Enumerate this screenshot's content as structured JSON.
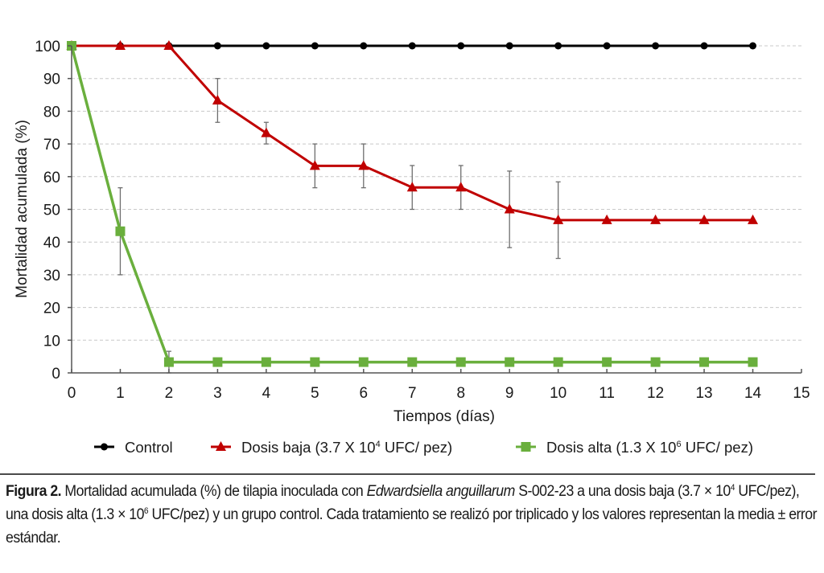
{
  "chart_data": {
    "type": "line",
    "title": "",
    "xlabel": "Tiempos (días)",
    "ylabel": "Mortalidad acumulada (%)",
    "xlim": [
      0,
      15
    ],
    "ylim": [
      0,
      100
    ],
    "xticks": [
      0,
      1,
      2,
      3,
      4,
      5,
      6,
      7,
      8,
      9,
      10,
      11,
      12,
      13,
      14,
      15
    ],
    "yticks": [
      0,
      10,
      20,
      30,
      40,
      50,
      60,
      70,
      80,
      90,
      100
    ],
    "grid": "horizontal-dashed",
    "legend_position": "bottom",
    "x": [
      0,
      1,
      2,
      3,
      4,
      5,
      6,
      7,
      8,
      9,
      10,
      11,
      12,
      13,
      14
    ],
    "series": [
      {
        "name": "Control",
        "legend_main": "Control",
        "legend_sup": "",
        "legend_tail": "",
        "color": "#000000",
        "marker": "circle",
        "values": [
          100,
          100,
          100,
          100,
          100,
          100,
          100,
          100,
          100,
          100,
          100,
          100,
          100,
          100,
          100
        ],
        "errors": [
          null,
          null,
          null,
          null,
          null,
          null,
          null,
          null,
          null,
          null,
          null,
          null,
          null,
          null,
          null
        ]
      },
      {
        "name": "Dosis baja (3.7 X 10^4 UFC/ pez)",
        "legend_main": "Dosis baja (3.7 X 10",
        "legend_sup": "4",
        "legend_tail": " UFC/ pez)",
        "color": "#c00000",
        "marker": "triangle",
        "values": [
          100,
          100,
          100,
          83.3,
          73.3,
          63.3,
          63.3,
          56.7,
          56.7,
          50,
          46.7,
          46.7,
          46.7,
          46.7,
          46.7
        ],
        "errors": [
          null,
          null,
          null,
          6.7,
          3.3,
          6.7,
          6.7,
          6.7,
          6.7,
          11.7,
          11.7,
          null,
          null,
          null,
          null
        ]
      },
      {
        "name": "Dosis alta (1.3 X 10^6 UFC/ pez)",
        "legend_main": "Dosis alta (1.3 X 10",
        "legend_sup": "6",
        "legend_tail": " UFC/ pez)",
        "color": "#6aaf3d",
        "marker": "square",
        "values": [
          100,
          43.3,
          3.3,
          3.3,
          3.3,
          3.3,
          3.3,
          3.3,
          3.3,
          3.3,
          3.3,
          3.3,
          3.3,
          3.3,
          3.3
        ],
        "errors": [
          null,
          13.3,
          3.3,
          null,
          null,
          null,
          null,
          null,
          null,
          null,
          null,
          null,
          null,
          null,
          null
        ]
      }
    ]
  },
  "caption": {
    "label": "Figura 2.",
    "part1": " Mortalidad acumulada (%) de tilapia inoculada con ",
    "species": "Edwardsiella anguillarum",
    "part2": " S-002-23 a una dosis baja (3.7 × 10",
    "sup1": "4",
    "part3": " UFC/pez), una dosis alta (1.3 × 10",
    "sup2": "6",
    "part4": " UFC/pez) y un grupo control. Cada tratamiento se realizó por triplicado y los valores representan la media ± error estándar."
  }
}
